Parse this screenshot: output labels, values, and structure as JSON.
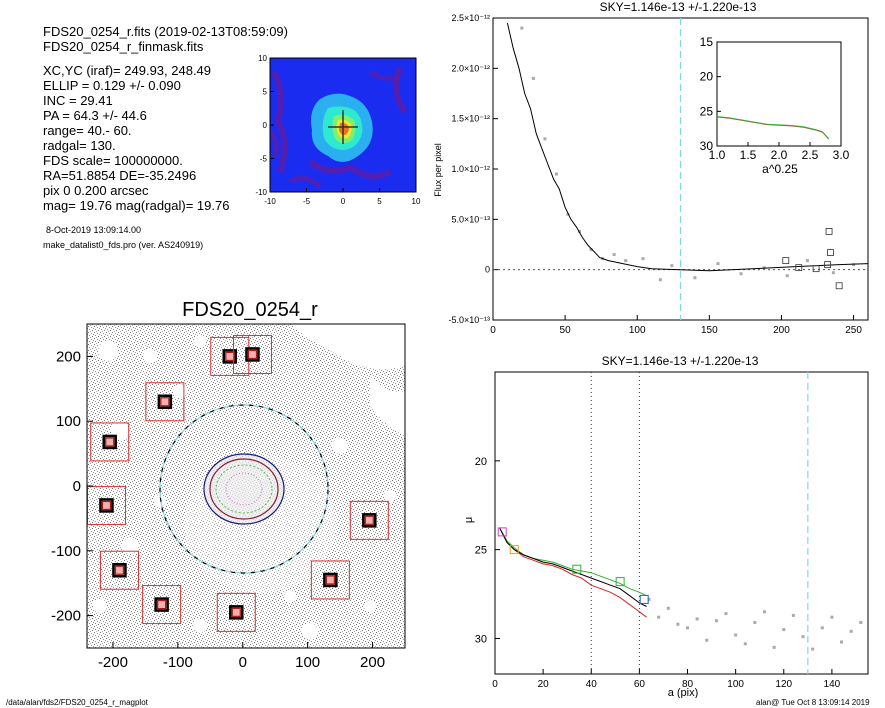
{
  "header": {
    "line1": "FDS20_0254_r.fits  (2019-02-13T08:59:09)",
    "line2": "FDS20_0254_r_finmask.fits"
  },
  "stats": [
    "XC,YC (iraf)=   249.93, 248.49",
    "ELLIP = 0.129 +/- 0.090",
    "INC   = 29.41",
    "PA    = 64.3 +/-  44.6",
    "range=   40.-   60.",
    "radgal=  130.",
    "FDS scale=  100000000.",
    "RA=51.8854   DE=-35.2496",
    "pix 0 0.200 arcsec",
    "mag=  19.76  mag(radgal)=  19.76"
  ],
  "run_date": "8-Oct-2019 13:09:14.00",
  "program": "make_datalist0_fds.pro (ver. AS240919)",
  "footer": {
    "path": "/data/alan/fds2/FDS20_0254_r_magplot",
    "user": "alan@  Tue Oct  8 13:09:14 2019"
  },
  "colors": {
    "contour_bg": "#1a2cf0",
    "profile_black": "#000000",
    "profile_red": "#e02020",
    "profile_green": "#30b030",
    "dashed_cyan": "#7fd8e8",
    "mask_box": "#e03030",
    "ellipse_navy": "#1a1a8a"
  },
  "chart_data": [
    {
      "type": "heatmap",
      "name": "thumbnail-contour",
      "xlim": [
        -10,
        10
      ],
      "ylim": [
        -10,
        10
      ],
      "xticks": [
        "-10",
        "-5",
        "0",
        "5",
        "10"
      ],
      "yticks": [
        "-10",
        "-5",
        "0",
        "5",
        "10"
      ]
    },
    {
      "type": "scatter",
      "title": "FDS20_0254_r",
      "xlim": [
        -240,
        250
      ],
      "ylim": [
        -250,
        250
      ],
      "xticks": [
        "-200",
        "-100",
        "0",
        "100",
        "200"
      ],
      "yticks": [
        "-200",
        "-100",
        "0",
        "100",
        "200"
      ],
      "mask_boxes": [
        [
          -120,
          130
        ],
        [
          -205,
          68
        ],
        [
          -210,
          -30
        ],
        [
          -190,
          -130
        ],
        [
          -125,
          -183
        ],
        [
          -20,
          200
        ],
        [
          15,
          203
        ],
        [
          -10,
          -195
        ],
        [
          135,
          -145
        ],
        [
          195,
          -53
        ]
      ],
      "ellipse_center": [
        0,
        0
      ],
      "dashed_circle_radius": 130
    },
    {
      "type": "line",
      "title": "SKY=1.146e-13 +/-1.220e-13",
      "ylabel": "Flux per pixel",
      "xlim": [
        0,
        260
      ],
      "ylim": [
        -5e-13,
        2.5e-12
      ],
      "xticks": [
        "0",
        "50",
        "100",
        "150",
        "200",
        "250"
      ],
      "yticks": [
        "-5.0×10⁻¹³",
        "0",
        "5.0×10⁻¹³",
        "1.0×10⁻¹²",
        "1.5×10⁻¹²",
        "2.0×10⁻¹²",
        "2.5×10⁻¹²"
      ],
      "sky_marker": 130,
      "profile": [
        [
          10,
          2.45e-12
        ],
        [
          14,
          2.2e-12
        ],
        [
          18,
          2e-12
        ],
        [
          22,
          1.75e-12
        ],
        [
          26,
          1.6e-12
        ],
        [
          30,
          1.35e-12
        ],
        [
          34,
          1.2e-12
        ],
        [
          38,
          1.05e-12
        ],
        [
          42,
          9e-13
        ],
        [
          46,
          8e-13
        ],
        [
          50,
          6.2e-13
        ],
        [
          54,
          5e-13
        ],
        [
          58,
          4.2e-13
        ],
        [
          62,
          3.2e-13
        ],
        [
          66,
          2.4e-13
        ],
        [
          70,
          1.8e-13
        ],
        [
          74,
          1.2e-13
        ],
        [
          80,
          9e-14
        ],
        [
          90,
          6e-14
        ],
        [
          100,
          3e-14
        ],
        [
          110,
          1e-14
        ],
        [
          130,
          0
        ],
        [
          150,
          -1e-14
        ],
        [
          180,
          1e-14
        ],
        [
          210,
          3e-14
        ],
        [
          240,
          5e-14
        ],
        [
          260,
          6e-14
        ]
      ],
      "scatter": [
        [
          20,
          2.4e-12
        ],
        [
          28,
          1.9e-12
        ],
        [
          36,
          1.3e-12
        ],
        [
          44,
          9.5e-13
        ],
        [
          52,
          5.5e-13
        ],
        [
          60,
          3.8e-13
        ],
        [
          68,
          2e-13
        ],
        [
          76,
          1.1e-13
        ],
        [
          84,
          1.5e-13
        ],
        [
          92,
          9e-14
        ],
        [
          104,
          1.1e-13
        ],
        [
          116,
          -1e-13
        ],
        [
          124,
          4e-14
        ],
        [
          140,
          -8e-14
        ],
        [
          156,
          6e-14
        ],
        [
          172,
          -4e-14
        ],
        [
          188,
          2e-14
        ],
        [
          204,
          -6e-14
        ],
        [
          218,
          9e-14
        ],
        [
          236,
          -3e-14
        ],
        [
          250,
          5e-14
        ]
      ],
      "boxes": [
        [
          203,
          9e-14
        ],
        [
          212,
          2e-14
        ],
        [
          224,
          1e-14
        ],
        [
          232,
          5e-14
        ],
        [
          233,
          3.8e-13
        ],
        [
          234,
          1.7e-13
        ],
        [
          240,
          -1.6e-13
        ]
      ],
      "inset": {
        "xlim": [
          1.0,
          3.0
        ],
        "ylim": [
          30,
          15
        ],
        "xlabel": "a^0.25",
        "xticks": [
          "1.0",
          "1.5",
          "2.0",
          "2.5",
          "3.0"
        ],
        "yticks": [
          "15",
          "20",
          "25",
          "30"
        ],
        "profile": [
          [
            1.0,
            25.8
          ],
          [
            1.2,
            26.0
          ],
          [
            1.4,
            26.3
          ],
          [
            1.6,
            26.6
          ],
          [
            1.8,
            26.9
          ],
          [
            2.0,
            27.0
          ],
          [
            2.2,
            27.1
          ],
          [
            2.4,
            27.3
          ],
          [
            2.6,
            27.7
          ],
          [
            2.7,
            28.0
          ],
          [
            2.8,
            29.0
          ]
        ]
      }
    },
    {
      "type": "line",
      "title": "SKY=1.146e-13 +/-1.220e-13",
      "xlabel": "a (pix)",
      "ylabel": "μ",
      "xlim": [
        0,
        155
      ],
      "ylim": [
        32,
        15
      ],
      "xticks": [
        "0",
        "20",
        "40",
        "60",
        "80",
        "100",
        "120",
        "140"
      ],
      "yticks": [
        "20",
        "25",
        "30"
      ],
      "range_lines": [
        40,
        60
      ],
      "sky_marker": 130,
      "profile_black": [
        [
          2,
          23.8
        ],
        [
          5,
          24.6
        ],
        [
          8,
          25.0
        ],
        [
          12,
          25.3
        ],
        [
          16,
          25.5
        ],
        [
          20,
          25.7
        ],
        [
          24,
          25.8
        ],
        [
          28,
          26.0
        ],
        [
          32,
          26.2
        ],
        [
          36,
          26.4
        ],
        [
          40,
          26.6
        ],
        [
          44,
          26.8
        ],
        [
          48,
          27.0
        ],
        [
          52,
          27.2
        ],
        [
          56,
          27.6
        ],
        [
          60,
          28.0
        ],
        [
          63,
          28.2
        ]
      ],
      "profile_red": [
        [
          2,
          23.8
        ],
        [
          5,
          24.6
        ],
        [
          8,
          25.0
        ],
        [
          12,
          25.4
        ],
        [
          16,
          25.6
        ],
        [
          20,
          25.8
        ],
        [
          24,
          25.9
        ],
        [
          28,
          26.1
        ],
        [
          32,
          26.4
        ],
        [
          36,
          26.6
        ],
        [
          40,
          27.0
        ],
        [
          44,
          27.2
        ],
        [
          48,
          27.4
        ],
        [
          52,
          27.7
        ],
        [
          56,
          28.1
        ],
        [
          60,
          28.5
        ],
        [
          63,
          28.8
        ]
      ],
      "profile_green": [
        [
          2,
          23.8
        ],
        [
          5,
          24.5
        ],
        [
          8,
          24.9
        ],
        [
          12,
          25.3
        ],
        [
          16,
          25.5
        ],
        [
          20,
          25.6
        ],
        [
          24,
          25.7
        ],
        [
          28,
          25.9
        ],
        [
          32,
          26.1
        ],
        [
          36,
          26.2
        ],
        [
          40,
          26.3
        ],
        [
          44,
          26.5
        ],
        [
          48,
          26.7
        ],
        [
          52,
          26.9
        ],
        [
          56,
          27.2
        ],
        [
          60,
          27.4
        ],
        [
          63,
          27.6
        ]
      ],
      "scatter": [
        [
          64,
          27.8
        ],
        [
          68,
          28.8
        ],
        [
          72,
          28.3
        ],
        [
          76,
          29.2
        ],
        [
          80,
          29.4
        ],
        [
          84,
          28.9
        ],
        [
          88,
          30.1
        ],
        [
          92,
          29.0
        ],
        [
          96,
          28.6
        ],
        [
          100,
          29.8
        ],
        [
          104,
          30.3
        ],
        [
          108,
          29.1
        ],
        [
          112,
          28.5
        ],
        [
          116,
          30.5
        ],
        [
          120,
          29.5
        ],
        [
          124,
          28.7
        ],
        [
          128,
          29.9
        ],
        [
          132,
          30.6
        ],
        [
          136,
          29.4
        ],
        [
          140,
          28.8
        ],
        [
          144,
          30.2
        ],
        [
          148,
          29.6
        ],
        [
          152,
          29.1
        ]
      ],
      "boxes": [
        [
          3,
          24.0
        ],
        [
          8,
          25.0
        ],
        [
          34,
          26.1
        ],
        [
          52,
          26.8
        ],
        [
          62,
          27.8
        ]
      ]
    }
  ]
}
